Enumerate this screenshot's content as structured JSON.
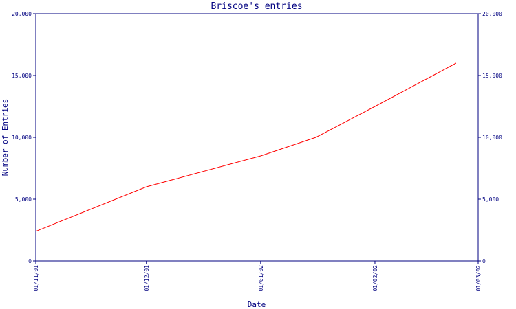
{
  "colors": {
    "axis": "#000080",
    "line": "#ff0000",
    "background": "#ffffff"
  },
  "chart_data": {
    "type": "line",
    "title": "Briscoe's entries",
    "xlabel": "Date",
    "ylabel": "Number of Entries",
    "x_tick_labels": [
      "01/11/01",
      "01/12/01",
      "01/01/02",
      "01/02/02",
      "01/03/02"
    ],
    "y_tick_labels": [
      "0",
      "5,000",
      "10,000",
      "15,000",
      "20,000"
    ],
    "y_ticks": [
      0,
      5000,
      10000,
      15000,
      20000
    ],
    "xlim": [
      "2001-11-01",
      "2002-03-01"
    ],
    "ylim": [
      0,
      20000
    ],
    "grid": false,
    "y_axis_labels_both_sides": true,
    "series": [
      {
        "x": [
          "2001-11-01",
          "2001-12-01",
          "2002-01-01",
          "2002-01-16",
          "2002-02-01",
          "2002-02-23"
        ],
        "values": [
          2400,
          6000,
          8500,
          10000,
          12500,
          16000
        ]
      }
    ]
  }
}
